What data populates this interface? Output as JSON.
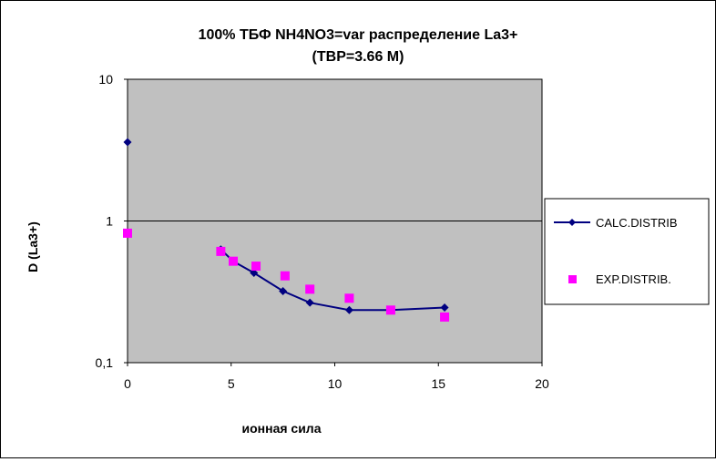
{
  "chart_data": {
    "type": "scatter",
    "title_line1": "100%  ТБФ  NH4NO3=var распределение La3+",
    "title_line2": "(TBP=3.66 M)",
    "xlabel": "ионная сила",
    "ylabel": "D (La3+)",
    "xlim": [
      0,
      20
    ],
    "ylim": [
      0.1,
      10
    ],
    "y_scale": "log",
    "x_ticks": [
      "0",
      "5",
      "10",
      "15",
      "20"
    ],
    "y_ticks": [
      "0,1",
      "1",
      "10"
    ],
    "grid": "major y only",
    "plot_background": "#c0c0c0",
    "legend_position": "right",
    "series": [
      {
        "name": "CALC.DISTRIB",
        "marker": "diamond",
        "line": true,
        "color": "#000080",
        "points": [
          [
            0,
            3.6
          ],
          [
            4.5,
            0.63
          ],
          [
            5.1,
            0.52
          ],
          [
            6.1,
            0.43
          ],
          [
            7.5,
            0.32
          ],
          [
            8.8,
            0.265
          ],
          [
            10.7,
            0.235
          ],
          [
            12.7,
            0.235
          ],
          [
            15.3,
            0.245
          ]
        ]
      },
      {
        "name": "EXP.DISTRIB.",
        "marker": "square",
        "line": false,
        "color": "#ff00ff",
        "points": [
          [
            0,
            0.82
          ],
          [
            4.5,
            0.61
          ],
          [
            5.1,
            0.52
          ],
          [
            6.2,
            0.48
          ],
          [
            7.6,
            0.41
          ],
          [
            8.8,
            0.33
          ],
          [
            10.7,
            0.285
          ],
          [
            12.7,
            0.235
          ],
          [
            15.3,
            0.21
          ]
        ]
      }
    ]
  }
}
